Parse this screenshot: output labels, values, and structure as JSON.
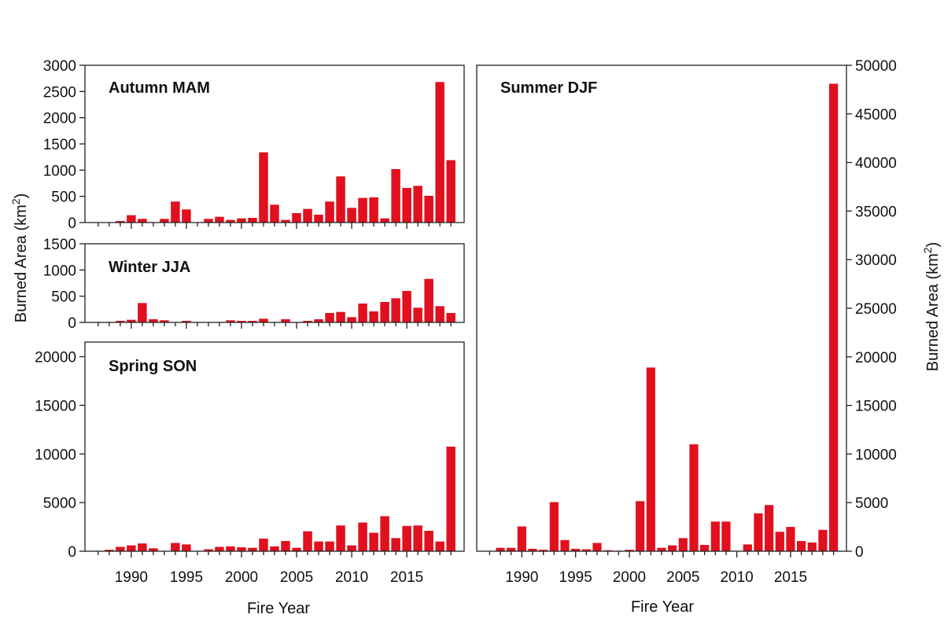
{
  "colors": {
    "bar": "#e0101e",
    "axis": "#222222",
    "text": "#111111"
  },
  "left_ylabel": {
    "main": "Burned Area (km",
    "sup": "2",
    "close": ")"
  },
  "right_ylabel": {
    "main": "Burned Area (km",
    "sup": "2",
    "close": ")"
  },
  "chart_data": [
    {
      "type": "bar",
      "title": "Autumn MAM",
      "xlabel": "",
      "ylabel": "Burned Area (km2)",
      "x": [
        1987,
        1988,
        1989,
        1990,
        1991,
        1992,
        1993,
        1994,
        1995,
        1996,
        1997,
        1998,
        1999,
        2000,
        2001,
        2002,
        2003,
        2004,
        2005,
        2006,
        2007,
        2008,
        2009,
        2010,
        2011,
        2012,
        2013,
        2014,
        2015,
        2016,
        2017,
        2018,
        2019
      ],
      "values": [
        0,
        0,
        30,
        140,
        70,
        0,
        70,
        400,
        250,
        0,
        70,
        110,
        50,
        80,
        90,
        1340,
        340,
        50,
        180,
        260,
        150,
        400,
        880,
        280,
        470,
        480,
        80,
        1020,
        660,
        700,
        510,
        2680,
        1190
      ],
      "ylim": [
        0,
        3000
      ],
      "yticks": [
        0,
        500,
        1000,
        1500,
        2000,
        2500,
        3000
      ],
      "xticks": [
        1990,
        1995,
        2000,
        2005,
        2010,
        2015
      ]
    },
    {
      "type": "bar",
      "title": "Winter JJA",
      "xlabel": "",
      "ylabel": "Burned Area (km2)",
      "x": [
        1987,
        1988,
        1989,
        1990,
        1991,
        1992,
        1993,
        1994,
        1995,
        1996,
        1997,
        1998,
        1999,
        2000,
        2001,
        2002,
        2003,
        2004,
        2005,
        2006,
        2007,
        2008,
        2009,
        2010,
        2011,
        2012,
        2013,
        2014,
        2015,
        2016,
        2017,
        2018,
        2019
      ],
      "values": [
        0,
        0,
        30,
        50,
        370,
        60,
        40,
        0,
        30,
        0,
        0,
        0,
        40,
        30,
        30,
        70,
        0,
        60,
        0,
        30,
        60,
        180,
        200,
        100,
        360,
        210,
        390,
        460,
        600,
        280,
        830,
        310,
        180
      ],
      "ylim": [
        0,
        1500
      ],
      "yticks": [
        0,
        500,
        1000,
        1500
      ],
      "xticks": [
        1990,
        1995,
        2000,
        2005,
        2010,
        2015
      ]
    },
    {
      "type": "bar",
      "title": "Spring SON",
      "xlabel": "Fire Year",
      "ylabel": "Burned Area (km2)",
      "x": [
        1987,
        1988,
        1989,
        1990,
        1991,
        1992,
        1993,
        1994,
        1995,
        1996,
        1997,
        1998,
        1999,
        2000,
        2001,
        2002,
        2003,
        2004,
        2005,
        2006,
        2007,
        2008,
        2009,
        2010,
        2011,
        2012,
        2013,
        2014,
        2015,
        2016,
        2017,
        2018,
        2019
      ],
      "values": [
        0,
        150,
        450,
        600,
        800,
        300,
        0,
        850,
        700,
        0,
        200,
        450,
        500,
        400,
        350,
        1300,
        500,
        1050,
        350,
        2050,
        1000,
        1000,
        2650,
        600,
        2950,
        1900,
        3600,
        1350,
        2600,
        2650,
        2100,
        1000,
        10750
      ],
      "ylim": [
        0,
        21500
      ],
      "yticks": [
        0,
        5000,
        10000,
        15000,
        20000
      ],
      "xticks": [
        1990,
        1995,
        2000,
        2005,
        2010,
        2015
      ]
    },
    {
      "type": "bar",
      "title": "Summer DJF",
      "xlabel": "Fire Year",
      "ylabel": "Burned Area (km2)",
      "x": [
        1987,
        1988,
        1989,
        1990,
        1991,
        1992,
        1993,
        1994,
        1995,
        1996,
        1997,
        1998,
        1999,
        2000,
        2001,
        2002,
        2003,
        2004,
        2005,
        2006,
        2007,
        2008,
        2009,
        2010,
        2011,
        2012,
        2013,
        2014,
        2015,
        2016,
        2017,
        2018,
        2019
      ],
      "values": [
        0,
        350,
        350,
        2550,
        250,
        150,
        5050,
        1150,
        250,
        200,
        850,
        100,
        50,
        150,
        5150,
        18900,
        350,
        600,
        1350,
        11000,
        650,
        3050,
        3050,
        0,
        700,
        3900,
        4750,
        2000,
        2500,
        1050,
        900,
        2200,
        48100
      ],
      "ylim": [
        0,
        50000
      ],
      "yticks": [
        0,
        5000,
        10000,
        15000,
        20000,
        25000,
        30000,
        35000,
        40000,
        45000,
        50000
      ],
      "xticks": [
        1990,
        1995,
        2000,
        2005,
        2010,
        2015
      ]
    }
  ]
}
